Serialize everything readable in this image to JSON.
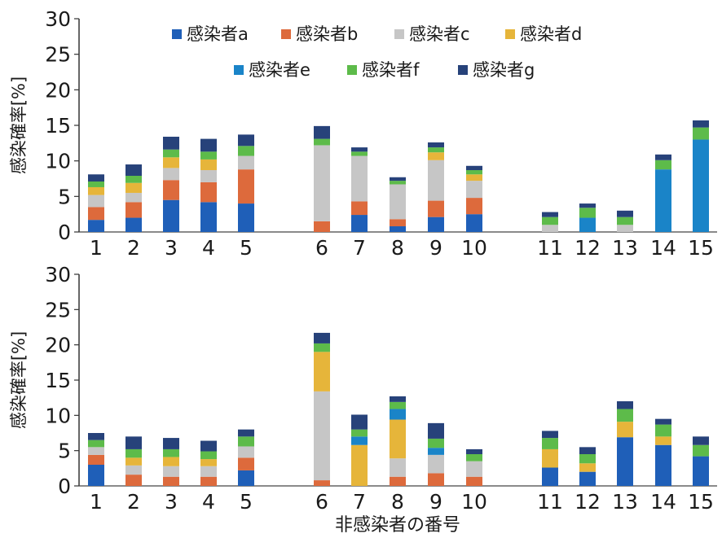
{
  "chart_data": [
    {
      "type": "bar",
      "stacked": true,
      "ylabel": "感染確率[%]",
      "xlabel": "",
      "ylim": [
        0,
        30
      ],
      "yticks": [
        0,
        5,
        10,
        15,
        20,
        25,
        30
      ],
      "grid": false,
      "legend_position": "top",
      "categories": [
        "1",
        "2",
        "3",
        "4",
        "5",
        "6",
        "7",
        "8",
        "9",
        "10",
        "11",
        "12",
        "13",
        "14",
        "15"
      ],
      "series": [
        {
          "name": "感染者a",
          "color": "#1f5fb8",
          "values": [
            1.7,
            2.0,
            4.5,
            4.2,
            4.0,
            0,
            2.4,
            0.8,
            2.1,
            2.5,
            0,
            0,
            0,
            0,
            0
          ]
        },
        {
          "name": "感染者b",
          "color": "#dd6a3c",
          "values": [
            1.8,
            2.2,
            2.8,
            2.8,
            4.8,
            1.5,
            1.9,
            1.0,
            2.3,
            2.3,
            0,
            0,
            0,
            0,
            0
          ]
        },
        {
          "name": "感染者c",
          "color": "#c6c6c6",
          "values": [
            1.7,
            1.3,
            1.7,
            1.7,
            1.9,
            10.7,
            6.4,
            4.9,
            5.7,
            2.4,
            1.0,
            0,
            1.0,
            0,
            0
          ]
        },
        {
          "name": "感染者d",
          "color": "#e6b53a",
          "values": [
            1.1,
            1.4,
            1.5,
            1.5,
            0,
            0,
            0,
            0,
            1.1,
            0.9,
            0,
            0,
            0,
            0,
            0
          ]
        },
        {
          "name": "感染者e",
          "color": "#1a84c8",
          "values": [
            0,
            0,
            0,
            0,
            0,
            0,
            0,
            0,
            0,
            0,
            0,
            2.0,
            0,
            8.8,
            13.0
          ]
        },
        {
          "name": "感染者f",
          "color": "#5dbb4a",
          "values": [
            0.8,
            1.0,
            1.1,
            1.1,
            1.4,
            0.9,
            0.6,
            0.5,
            0.7,
            0.6,
            1.1,
            1.4,
            1.1,
            1.3,
            1.7
          ]
        },
        {
          "name": "感染者g",
          "color": "#27427a",
          "values": [
            1.0,
            1.6,
            1.8,
            1.8,
            1.6,
            1.8,
            0.6,
            0.5,
            0.7,
            0.6,
            0.7,
            0.6,
            0.9,
            0.8,
            1.0
          ]
        }
      ]
    },
    {
      "type": "bar",
      "stacked": true,
      "ylabel": "感染確率[%]",
      "xlabel": "非感染者の番号",
      "ylim": [
        0,
        30
      ],
      "yticks": [
        0,
        5,
        10,
        15,
        20,
        25,
        30
      ],
      "grid": false,
      "categories": [
        "1",
        "2",
        "3",
        "4",
        "5",
        "6",
        "7",
        "8",
        "9",
        "10",
        "11",
        "12",
        "13",
        "14",
        "15"
      ],
      "series": [
        {
          "name": "感染者a",
          "color": "#1f5fb8",
          "values": [
            3.0,
            0,
            0,
            0,
            2.2,
            0,
            0,
            0,
            0,
            0,
            2.6,
            2.0,
            6.9,
            5.8,
            4.2
          ]
        },
        {
          "name": "感染者b",
          "color": "#dd6a3c",
          "values": [
            1.4,
            1.6,
            1.3,
            1.3,
            1.8,
            0.8,
            0,
            1.3,
            1.8,
            1.3,
            0,
            0,
            0,
            0,
            0
          ]
        },
        {
          "name": "感染者c",
          "color": "#c6c6c6",
          "values": [
            1.1,
            1.3,
            1.5,
            1.5,
            1.6,
            12.6,
            0,
            2.6,
            2.6,
            2.2,
            0,
            0,
            0,
            0,
            0
          ]
        },
        {
          "name": "感染者d",
          "color": "#e6b53a",
          "values": [
            0,
            1.1,
            1.3,
            1.0,
            0,
            5.6,
            5.8,
            5.5,
            0,
            0,
            2.6,
            1.2,
            2.2,
            1.2,
            0
          ]
        },
        {
          "name": "感染者e",
          "color": "#1a84c8",
          "values": [
            0,
            0,
            0,
            0,
            0,
            0,
            1.2,
            1.5,
            1.0,
            0,
            0,
            0,
            0,
            0,
            0
          ]
        },
        {
          "name": "感染者f",
          "color": "#5dbb4a",
          "values": [
            1.0,
            1.2,
            1.1,
            1.1,
            1.4,
            1.2,
            1.0,
            1.0,
            1.3,
            1.0,
            1.6,
            1.3,
            1.8,
            1.7,
            1.6
          ]
        },
        {
          "name": "感染者g",
          "color": "#27427a",
          "values": [
            1.0,
            1.8,
            1.6,
            1.5,
            1.0,
            1.5,
            2.1,
            0.8,
            2.2,
            0.7,
            1.0,
            1.0,
            1.1,
            0.8,
            1.2
          ]
        }
      ]
    }
  ]
}
